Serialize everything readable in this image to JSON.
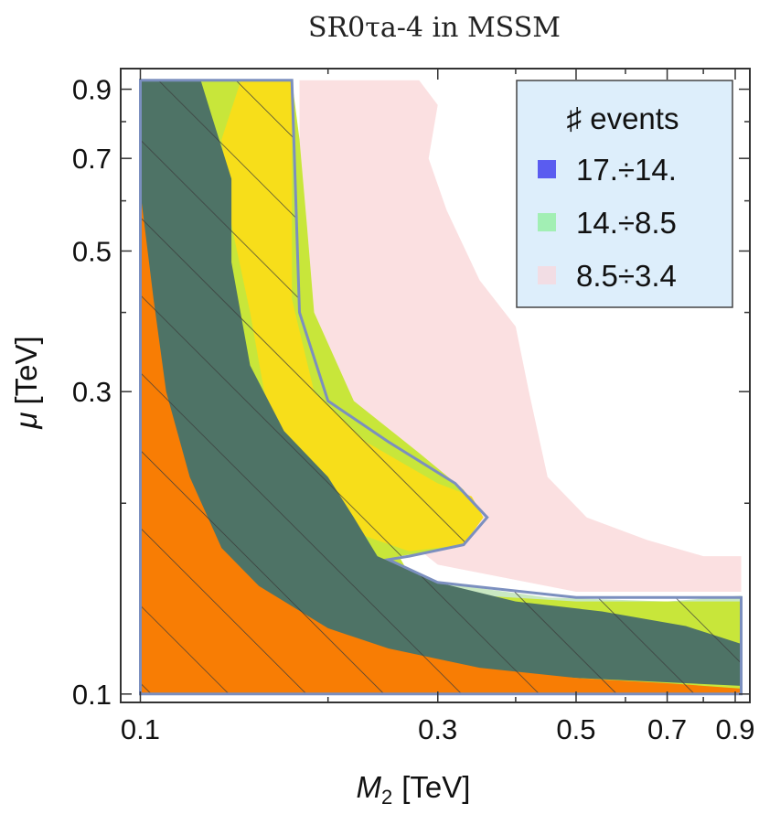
{
  "chart_data": {
    "type": "heatmap",
    "title": "SR0τa-4 in MSSM",
    "xlabel_var": "M",
    "xlabel_sub": "2",
    "xlabel_unit": "[TeV]",
    "ylabel_var": "μ",
    "ylabel_unit": "[TeV]",
    "xscale": "log",
    "yscale": "log",
    "xlim": [
      0.093,
      0.95
    ],
    "ylim": [
      0.097,
      0.97
    ],
    "xticks": [
      {
        "value": 0.1,
        "label": "0.1"
      },
      {
        "value": 0.3,
        "label": "0.3"
      },
      {
        "value": 0.5,
        "label": "0.5"
      },
      {
        "value": 0.7,
        "label": "0.7"
      },
      {
        "value": 0.9,
        "label": "0.9"
      }
    ],
    "yticks": [
      {
        "value": 0.1,
        "label": "0.1"
      },
      {
        "value": 0.3,
        "label": "0.3"
      },
      {
        "value": 0.5,
        "label": "0.5"
      },
      {
        "value": 0.7,
        "label": "0.7"
      },
      {
        "value": 0.9,
        "label": "0.9"
      }
    ],
    "legend": {
      "title": "♯ events",
      "placement": "top-right",
      "entries": [
        {
          "label": "17.÷14.",
          "color": "#5a5cf0"
        },
        {
          "label": "14.÷8.5",
          "color": "#a2efb4"
        },
        {
          "label": "8.5÷3.4",
          "color": "#f2dde4"
        }
      ]
    },
    "regions": [
      {
        "name": "pink-region",
        "fill": "#fbe0e1",
        "points": [
          [
            0.18,
            0.93
          ],
          [
            0.28,
            0.93
          ],
          [
            0.3,
            0.85
          ],
          [
            0.29,
            0.7
          ],
          [
            0.31,
            0.58
          ],
          [
            0.35,
            0.45
          ],
          [
            0.4,
            0.38
          ],
          [
            0.42,
            0.3
          ],
          [
            0.45,
            0.22
          ],
          [
            0.52,
            0.19
          ],
          [
            0.65,
            0.175
          ],
          [
            0.8,
            0.165
          ],
          [
            0.92,
            0.165
          ],
          [
            0.92,
            0.145
          ],
          [
            0.5,
            0.145
          ],
          [
            0.3,
            0.16
          ],
          [
            0.2,
            0.22
          ],
          [
            0.18,
            0.4
          ]
        ]
      },
      {
        "name": "lightgreen-region",
        "fill": "#c9e8c2",
        "points": [
          [
            0.24,
            0.165
          ],
          [
            0.3,
            0.15
          ],
          [
            0.45,
            0.142
          ],
          [
            0.7,
            0.14
          ],
          [
            0.92,
            0.143
          ],
          [
            0.92,
            0.13
          ],
          [
            0.6,
            0.128
          ],
          [
            0.35,
            0.132
          ],
          [
            0.26,
            0.15
          ]
        ]
      },
      {
        "name": "lime-region",
        "fill": "#c8e63a",
        "points": [
          [
            0.1,
            0.93
          ],
          [
            0.175,
            0.93
          ],
          [
            0.18,
            0.75
          ],
          [
            0.185,
            0.55
          ],
          [
            0.19,
            0.4
          ],
          [
            0.22,
            0.29
          ],
          [
            0.28,
            0.24
          ],
          [
            0.33,
            0.21
          ],
          [
            0.35,
            0.19
          ],
          [
            0.32,
            0.17
          ],
          [
            0.26,
            0.165
          ],
          [
            0.28,
            0.145
          ],
          [
            0.5,
            0.14
          ],
          [
            0.92,
            0.14
          ],
          [
            0.92,
            0.1
          ],
          [
            0.1,
            0.1
          ]
        ]
      },
      {
        "name": "yellow-region",
        "fill": "#f7de1a",
        "points": [
          [
            0.145,
            0.93
          ],
          [
            0.175,
            0.93
          ],
          [
            0.175,
            0.42
          ],
          [
            0.19,
            0.3
          ],
          [
            0.23,
            0.25
          ],
          [
            0.3,
            0.215
          ],
          [
            0.34,
            0.205
          ],
          [
            0.355,
            0.19
          ],
          [
            0.33,
            0.172
          ],
          [
            0.27,
            0.168
          ],
          [
            0.22,
            0.18
          ],
          [
            0.18,
            0.21
          ],
          [
            0.16,
            0.28
          ],
          [
            0.15,
            0.4
          ],
          [
            0.14,
            0.55
          ],
          [
            0.135,
            0.75
          ]
        ]
      },
      {
        "name": "dark-region",
        "fill": "#4e7366",
        "points": [
          [
            0.1,
            0.93
          ],
          [
            0.125,
            0.93
          ],
          [
            0.13,
            0.82
          ],
          [
            0.14,
            0.65
          ],
          [
            0.14,
            0.48
          ],
          [
            0.15,
            0.33
          ],
          [
            0.17,
            0.26
          ],
          [
            0.2,
            0.22
          ],
          [
            0.22,
            0.19
          ],
          [
            0.24,
            0.165
          ],
          [
            0.3,
            0.15
          ],
          [
            0.4,
            0.14
          ],
          [
            0.55,
            0.135
          ],
          [
            0.75,
            0.128
          ],
          [
            0.92,
            0.12
          ],
          [
            0.92,
            0.103
          ],
          [
            0.5,
            0.106
          ],
          [
            0.3,
            0.11
          ],
          [
            0.2,
            0.118
          ],
          [
            0.16,
            0.132
          ],
          [
            0.13,
            0.16
          ],
          [
            0.115,
            0.22
          ],
          [
            0.105,
            0.4
          ],
          [
            0.1,
            0.6
          ]
        ]
      },
      {
        "name": "orange-region",
        "fill": "#f87d04",
        "points": [
          [
            0.1,
            0.1
          ],
          [
            0.1,
            0.62
          ],
          [
            0.105,
            0.42
          ],
          [
            0.11,
            0.3
          ],
          [
            0.12,
            0.22
          ],
          [
            0.135,
            0.17
          ],
          [
            0.155,
            0.148
          ],
          [
            0.2,
            0.127
          ],
          [
            0.25,
            0.118
          ],
          [
            0.35,
            0.11
          ],
          [
            0.5,
            0.106
          ],
          [
            0.7,
            0.104
          ],
          [
            0.92,
            0.102
          ],
          [
            0.92,
            0.1
          ]
        ]
      }
    ],
    "outline": [
      [
        0.1,
        0.93
      ],
      [
        0.175,
        0.93
      ],
      [
        0.18,
        0.4
      ],
      [
        0.2,
        0.29
      ],
      [
        0.25,
        0.25
      ],
      [
        0.32,
        0.215
      ],
      [
        0.36,
        0.19
      ],
      [
        0.33,
        0.172
      ],
      [
        0.27,
        0.165
      ],
      [
        0.25,
        0.163
      ],
      [
        0.3,
        0.15
      ],
      [
        0.5,
        0.142
      ],
      [
        0.92,
        0.142
      ],
      [
        0.92,
        0.1
      ],
      [
        0.1,
        0.1
      ]
    ]
  }
}
